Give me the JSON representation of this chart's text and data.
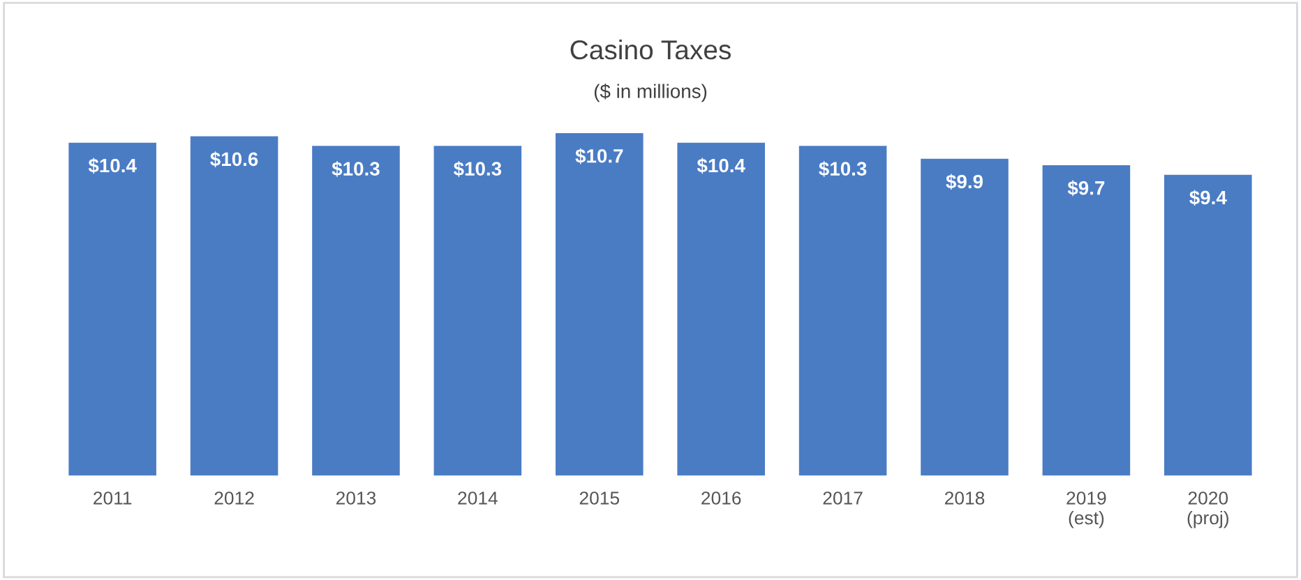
{
  "chart_data": {
    "type": "bar",
    "title": "Casino Taxes",
    "subtitle": "($ in millions)",
    "categories": [
      "2011",
      "2012",
      "2013",
      "2014",
      "2015",
      "2016",
      "2017",
      "2018",
      "2019\n(est)",
      "2020\n(proj)"
    ],
    "values": [
      10.4,
      10.6,
      10.3,
      10.3,
      10.7,
      10.4,
      10.3,
      9.9,
      9.7,
      9.4
    ],
    "value_labels": [
      "$10.4",
      "$10.6",
      "$10.3",
      "$10.3",
      "$10.7",
      "$10.4",
      "$10.3",
      "$9.9",
      "$9.7",
      "$9.4"
    ],
    "color": "#4a7cc4",
    "grid": false,
    "legend": false
  }
}
